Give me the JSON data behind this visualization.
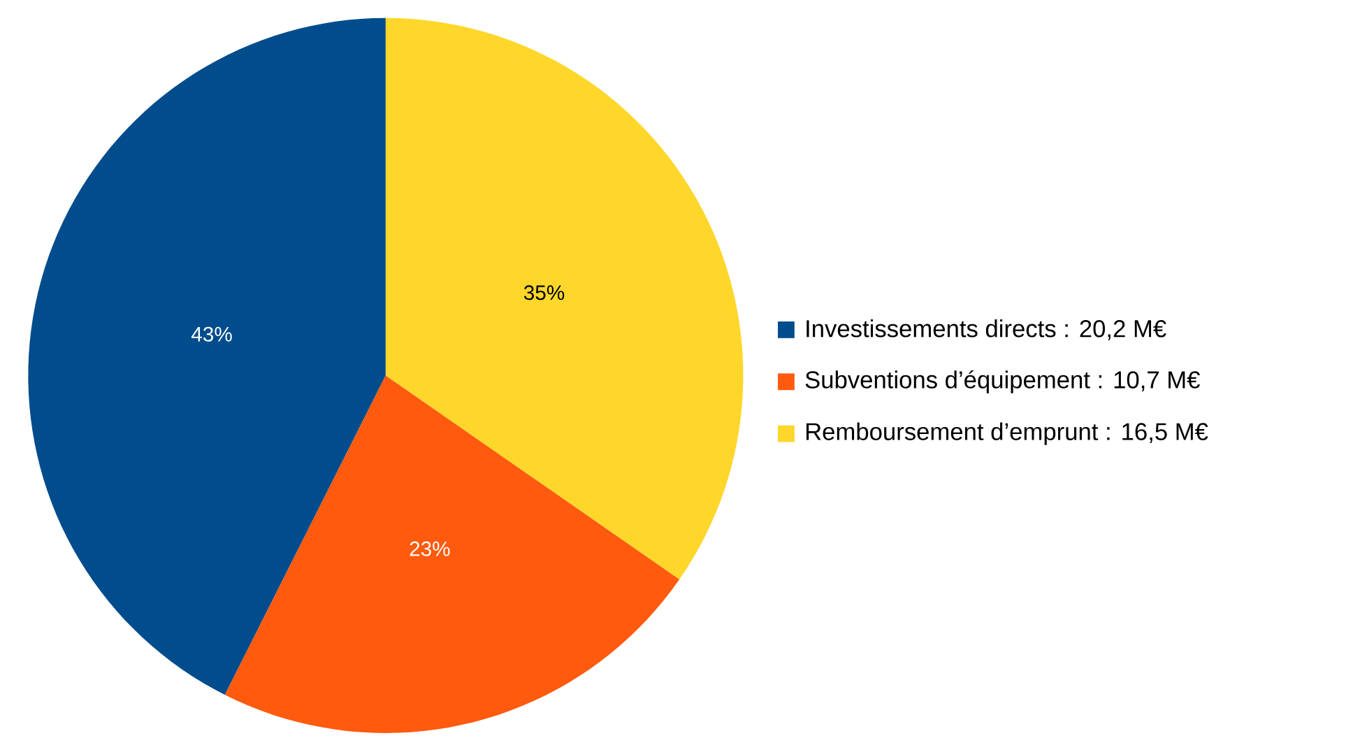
{
  "chart_data": {
    "type": "pie",
    "categories": [
      "Investissements directs : 20,2 M€",
      "Subventions d’équipement : 10,7 M€",
      "Remboursement d’emprunt : 16,5 M€"
    ],
    "values": [
      43,
      23,
      35
    ],
    "value_labels": [
      "43%",
      "23%",
      "35%"
    ],
    "colors": [
      "#004c8c",
      "#ff5a0e",
      "#ffd62a"
    ],
    "legend": "right"
  }
}
